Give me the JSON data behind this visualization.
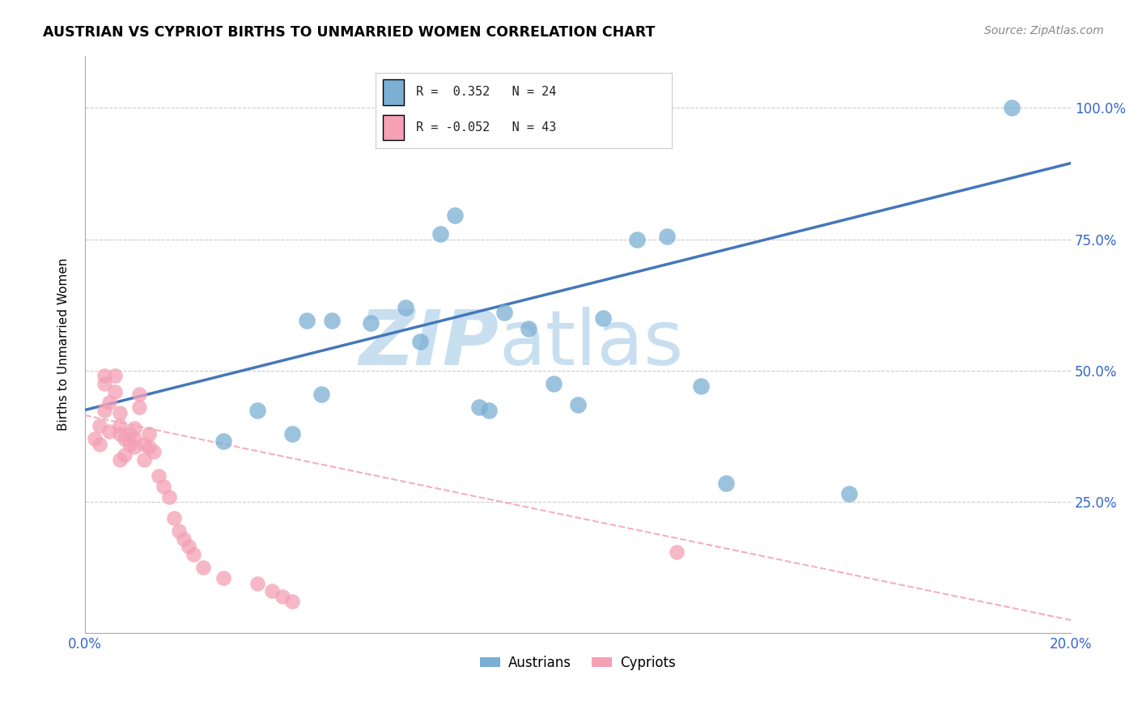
{
  "title": "AUSTRIAN VS CYPRIOT BIRTHS TO UNMARRIED WOMEN CORRELATION CHART",
  "source": "Source: ZipAtlas.com",
  "ylabel": "Births to Unmarried Women",
  "xlim": [
    0.0,
    0.2
  ],
  "ylim": [
    0.0,
    1.1
  ],
  "blue_color": "#7BAFD4",
  "pink_color": "#F4A0B5",
  "blue_trend_color": "#4477BB",
  "pink_trend_color": "#F4A0B5",
  "watermark_zip": "ZIP",
  "watermark_atlas": "atlas",
  "watermark_color": "#C8DFF0",
  "austrians_x": [
    0.028,
    0.035,
    0.042,
    0.045,
    0.048,
    0.05,
    0.058,
    0.065,
    0.068,
    0.072,
    0.075,
    0.08,
    0.082,
    0.085,
    0.09,
    0.095,
    0.1,
    0.105,
    0.112,
    0.118,
    0.125,
    0.13,
    0.155,
    0.188
  ],
  "austrians_y": [
    0.365,
    0.425,
    0.38,
    0.595,
    0.455,
    0.595,
    0.59,
    0.62,
    0.555,
    0.76,
    0.795,
    0.43,
    0.425,
    0.61,
    0.58,
    0.475,
    0.435,
    0.6,
    0.75,
    0.755,
    0.47,
    0.285,
    0.265,
    1.0
  ],
  "cypriots_x": [
    0.002,
    0.003,
    0.003,
    0.004,
    0.004,
    0.004,
    0.005,
    0.005,
    0.006,
    0.006,
    0.007,
    0.007,
    0.007,
    0.007,
    0.008,
    0.008,
    0.009,
    0.009,
    0.01,
    0.01,
    0.01,
    0.011,
    0.011,
    0.012,
    0.012,
    0.013,
    0.013,
    0.014,
    0.015,
    0.016,
    0.017,
    0.018,
    0.019,
    0.02,
    0.021,
    0.022,
    0.024,
    0.028,
    0.035,
    0.038,
    0.04,
    0.042,
    0.12
  ],
  "cypriots_y": [
    0.37,
    0.395,
    0.36,
    0.425,
    0.475,
    0.49,
    0.385,
    0.44,
    0.46,
    0.49,
    0.33,
    0.38,
    0.395,
    0.42,
    0.34,
    0.37,
    0.36,
    0.38,
    0.355,
    0.37,
    0.39,
    0.43,
    0.455,
    0.33,
    0.36,
    0.355,
    0.38,
    0.345,
    0.3,
    0.28,
    0.26,
    0.22,
    0.195,
    0.18,
    0.165,
    0.15,
    0.125,
    0.105,
    0.095,
    0.08,
    0.07,
    0.06,
    0.155
  ],
  "blue_trend_x": [
    0.0,
    0.2
  ],
  "blue_trend_y": [
    0.425,
    0.895
  ],
  "pink_trend_x": [
    0.0,
    0.2
  ],
  "pink_trend_y": [
    0.415,
    0.025
  ]
}
